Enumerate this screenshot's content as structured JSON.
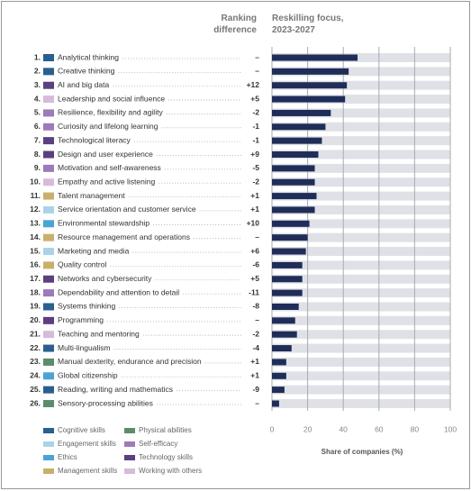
{
  "chart_data": {
    "type": "bar",
    "ranking_header": "Ranking difference",
    "title": "Reskilling focus, 2023-2027",
    "x_label": "Share of companies (%)",
    "ranks": [
      "1.",
      "2.",
      "3.",
      "4.",
      "5.",
      "6.",
      "7.",
      "8.",
      "9.",
      "10.",
      "11.",
      "12.",
      "13.",
      "14.",
      "15.",
      "16.",
      "17.",
      "18.",
      "19.",
      "20.",
      "21.",
      "22.",
      "23.",
      "24.",
      "25.",
      "26."
    ],
    "categories": [
      "Analytical thinking",
      "Creative thinking",
      "AI and big data",
      "Leadership and social influence",
      "Resilience, flexibility and agility",
      "Curiosity and lifelong learning",
      "Technological literacy",
      "Design and user experience",
      "Motivation and self-awareness",
      "Empathy and active listening",
      "Talent management",
      "Service orientation and customer service",
      "Environmental stewardship",
      "Resource management and operations",
      "Marketing and media",
      "Quality control",
      "Networks and cybersecurity",
      "Dependability and attention to detail",
      "Systems thinking",
      "Programming",
      "Teaching and mentoring",
      "Multi-lingualism",
      "Manual dexterity, endurance and precision",
      "Global citizenship",
      "Reading, writing and mathematics",
      "Sensory-processing abilities"
    ],
    "ranking_difference": [
      "–",
      "–",
      "+12",
      "+5",
      "-2",
      "-1",
      "-1",
      "+9",
      "-5",
      "-2",
      "+1",
      "+1",
      "+10",
      "–",
      "+6",
      "-6",
      "+5",
      "-11",
      "-8",
      "–",
      "-2",
      "-4",
      "+1",
      "+1",
      "-9",
      "–"
    ],
    "swatch_colors": [
      "#2b5f8e",
      "#2b5f8e",
      "#5b3f7e",
      "#d6bcd9",
      "#9d7ab9",
      "#9d7ab9",
      "#5b3f7e",
      "#5b3f7e",
      "#9d7ab9",
      "#d6bcd9",
      "#c8b06c",
      "#a9d4e7",
      "#4aa4d2",
      "#c8b06c",
      "#a9d4e7",
      "#c8b06c",
      "#5b3f7e",
      "#9d7ab9",
      "#2b5f8e",
      "#5b3f7e",
      "#d6bcd9",
      "#2b5f8e",
      "#5c8d6b",
      "#4aa4d2",
      "#2b5f8e",
      "#5c8d6b"
    ],
    "values": [
      48,
      43,
      42,
      41,
      33,
      30,
      28,
      26,
      24,
      24,
      25,
      24,
      21,
      20,
      19,
      17,
      17,
      17,
      15,
      13,
      14,
      11,
      8,
      8,
      7,
      4
    ],
    "color": "#1f2d58",
    "xlim": [
      0,
      100
    ],
    "xticks": [
      0,
      20,
      40,
      60,
      80,
      100
    ],
    "grid": true,
    "legend": [
      {
        "name": "Cognitive skills",
        "color": "#2b5f8e"
      },
      {
        "name": "Engagement skills",
        "color": "#a9d4e7"
      },
      {
        "name": "Ethics",
        "color": "#4aa4d2"
      },
      {
        "name": "Management skills",
        "color": "#c8b06c"
      },
      {
        "name": "Physical abilities",
        "color": "#5c8d6b"
      },
      {
        "name": "Self-efficacy",
        "color": "#9d7ab9"
      },
      {
        "name": "Technology skills",
        "color": "#5b3f7e"
      },
      {
        "name": "Working with others",
        "color": "#d6bcd9"
      }
    ]
  }
}
